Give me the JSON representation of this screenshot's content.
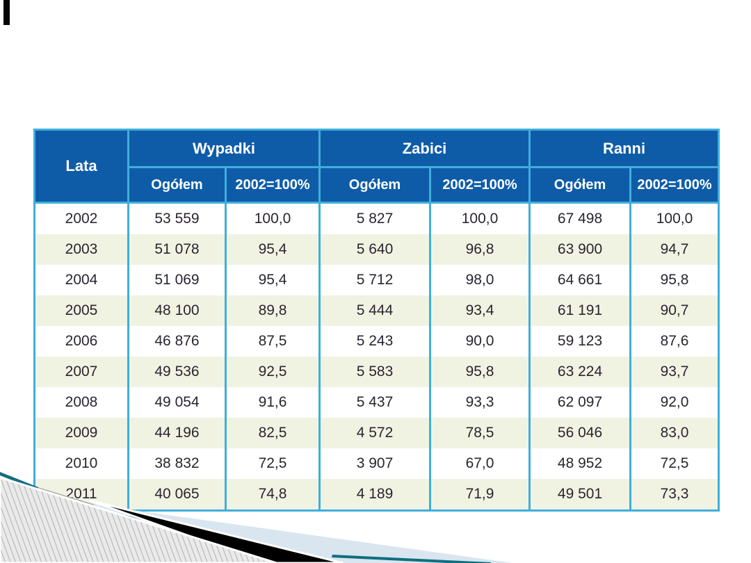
{
  "slide": {
    "accent_bar_color": "#060606"
  },
  "table": {
    "corner_label": "Lata",
    "groups": [
      {
        "label": "Wypadki",
        "subs": [
          "Ogółem",
          "2002=100%"
        ]
      },
      {
        "label": "Zabici",
        "subs": [
          "Ogółem",
          "2002=100%"
        ]
      },
      {
        "label": "Ranni",
        "subs": [
          "Ogółem",
          "2002=100%"
        ]
      }
    ],
    "rows": [
      [
        "2002",
        "53 559",
        "100,0",
        "5 827",
        "100,0",
        "67 498",
        "100,0"
      ],
      [
        "2003",
        "51 078",
        "95,4",
        "5 640",
        "96,8",
        "63 900",
        "94,7"
      ],
      [
        "2004",
        "51 069",
        "95,4",
        "5 712",
        "98,0",
        "64 661",
        "95,8"
      ],
      [
        "2005",
        "48 100",
        "89,8",
        "5 444",
        "93,4",
        "61 191",
        "90,7"
      ],
      [
        "2006",
        "46 876",
        "87,5",
        "5 243",
        "90,0",
        "59 123",
        "87,6"
      ],
      [
        "2007",
        "49 536",
        "92,5",
        "5 583",
        "95,8",
        "63 224",
        "93,7"
      ],
      [
        "2008",
        "49 054",
        "91,6",
        "5 437",
        "93,3",
        "62 097",
        "92,0"
      ],
      [
        "2009",
        "44 196",
        "82,5",
        "4 572",
        "78,5",
        "56 046",
        "83,0"
      ],
      [
        "2010",
        "38 832",
        "72,5",
        "3 907",
        "67,0",
        "48 952",
        "72,5"
      ],
      [
        "2011",
        "40 065",
        "74,8",
        "4 189",
        "71,9",
        "49 501",
        "73,3"
      ]
    ],
    "colors": {
      "header_bg": "#0E5CA8",
      "header_text": "#FFFFFF",
      "border": "#3FAEDC",
      "alt_row": "#F1F3E2",
      "text": "#2A2430"
    }
  },
  "decoration": {
    "pale_blue": "#D9E6EF",
    "black": "#000000",
    "teal": "#0F6F80",
    "hatch_bg": "#E9EAE9",
    "hatch_line": "#B5B5B5"
  }
}
